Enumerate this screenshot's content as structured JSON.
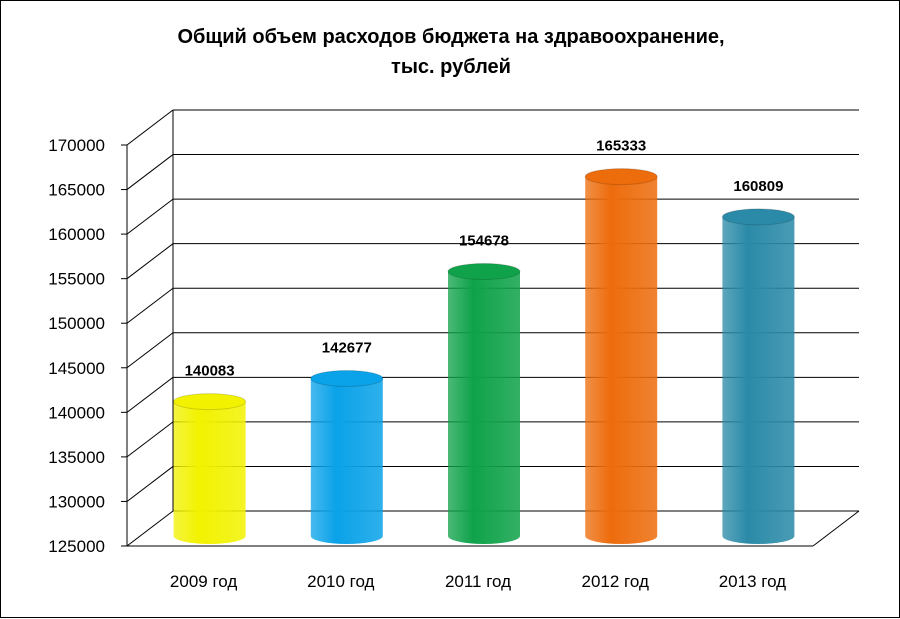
{
  "chart_data": {
    "type": "bar",
    "title_lines": [
      "Общий объем расходов бюджета на здравоохранение,",
      "тыс. рублей"
    ],
    "categories": [
      "2009 год",
      "2010 год",
      "2011 год",
      "2012 год",
      "2013 год"
    ],
    "values": [
      140083,
      142677,
      154678,
      165333,
      160809
    ],
    "data_labels": [
      "140083",
      "142677",
      "154678",
      "165333",
      "160809"
    ],
    "colors": [
      "#f2f200",
      "#0aa2e8",
      "#0fa24a",
      "#ed6c0c",
      "#2a8aa8"
    ],
    "ylim": [
      125000,
      170000
    ],
    "yticks": [
      125000,
      130000,
      135000,
      140000,
      145000,
      150000,
      155000,
      160000,
      165000,
      170000
    ],
    "ytick_labels": [
      "125000",
      "130000",
      "135000",
      "140000",
      "145000",
      "150000",
      "155000",
      "160000",
      "165000",
      "170000"
    ],
    "grid": true,
    "legend": "none",
    "style": "3d-cylinder"
  }
}
